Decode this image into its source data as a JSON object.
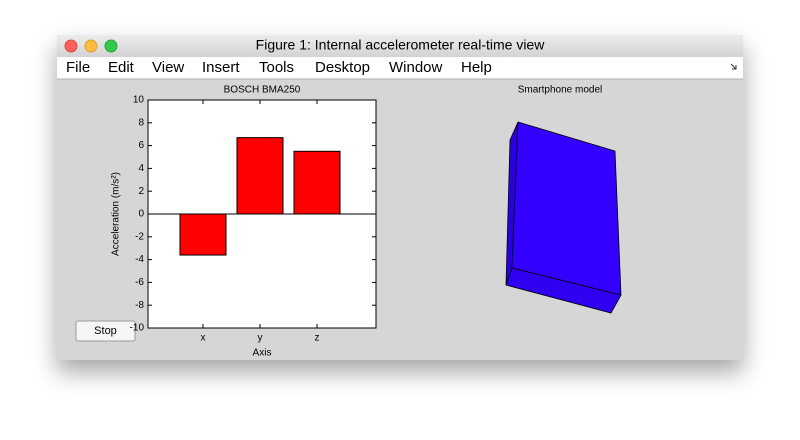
{
  "window": {
    "title": "Figure 1: Internal accelerometer real-time view",
    "menu": [
      "File",
      "Edit",
      "View",
      "Insert",
      "Tools",
      "Desktop",
      "Window",
      "Help"
    ]
  },
  "chart_data": {
    "type": "bar",
    "title": "BOSCH BMA250",
    "x_label": "Axis",
    "y_label": "Acceleration (m/s²)",
    "categories": [
      "x",
      "y",
      "z"
    ],
    "values": [
      -3.6,
      6.7,
      5.5
    ],
    "color": "#ff0000",
    "ylim": [
      -10,
      10
    ],
    "yticks": [
      -10,
      -8,
      -6,
      -4,
      -2,
      0,
      2,
      4,
      6,
      8,
      10
    ]
  },
  "model": {
    "title": "Smartphone model"
  },
  "button": {
    "label": "Stop"
  }
}
